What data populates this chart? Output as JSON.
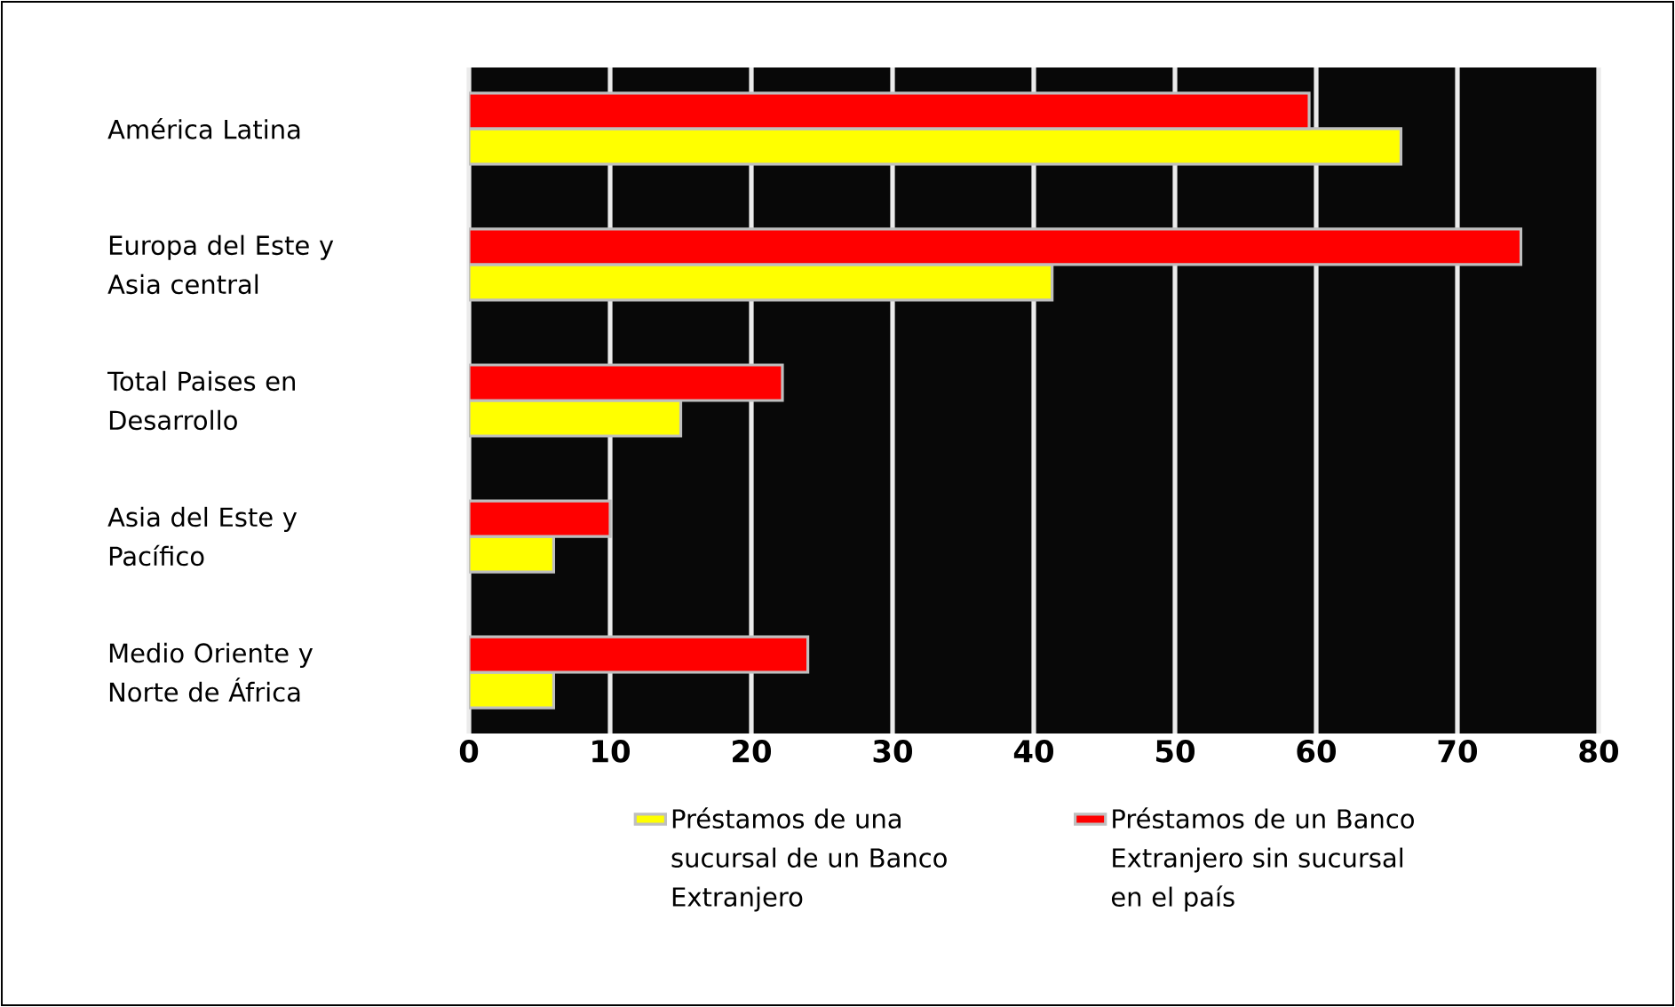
{
  "chart_data": {
    "type": "bar",
    "orientation": "horizontal",
    "categories": [
      "América Latina",
      "Europa del Este y Asia central",
      "Total Paises en Desarrollo",
      "Asia del Este y Pacífico",
      "Medio Oriente y Norte de África"
    ],
    "series": [
      {
        "name": "Préstamos de una sucursal de un Banco Extranjero",
        "color": "#ffff00",
        "values": [
          66,
          41.3,
          15,
          6,
          6
        ]
      },
      {
        "name": "Préstamos de un Banco Extranjero sin sucursal en el país",
        "color": "#ff0000",
        "values": [
          59.5,
          74.5,
          22.2,
          10,
          24
        ]
      }
    ],
    "xlim": [
      0,
      80
    ],
    "xticks": [
      0,
      10,
      20,
      30,
      40,
      50,
      60,
      70,
      80
    ],
    "grid": "x",
    "legend": "bottom"
  }
}
